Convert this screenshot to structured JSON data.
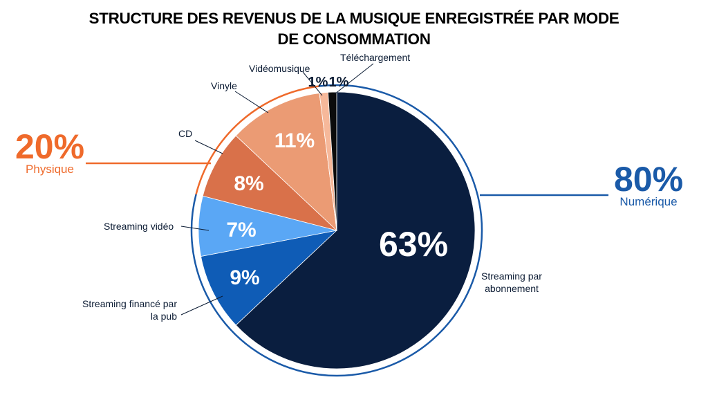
{
  "chart_data": {
    "type": "pie",
    "title": "STRUCTURE DES REVENUS DE LA MUSIQUE ENREGISTRÉE PAR MODE DE CONSOMMATION",
    "slices": [
      {
        "label": "Streaming par abonnement",
        "value": 63,
        "display": "63%",
        "color": "#0a1e3f"
      },
      {
        "label": "Streaming financé par la pub",
        "value": 9,
        "display": "9%",
        "color": "#0f5cb6"
      },
      {
        "label": "Streaming vidéo",
        "value": 7,
        "display": "7%",
        "color": "#5aa7f5"
      },
      {
        "label": "CD",
        "value": 8,
        "display": "8%",
        "color": "#d9714a"
      },
      {
        "label": "Vinyle",
        "value": 11,
        "display": "11%",
        "color": "#eb9b74"
      },
      {
        "label": "Vidéomusique",
        "value": 1,
        "display": "1%",
        "color": "#f6b89a"
      },
      {
        "label": "Téléchargement",
        "value": 1,
        "display": "1%",
        "color": "#0b0b0b"
      }
    ],
    "groups": [
      {
        "name": "Numérique",
        "value": 80,
        "display": "80%",
        "color": "#1a5aa8"
      },
      {
        "name": "Physique",
        "value": 20,
        "display": "20%",
        "color": "#ef6a2b"
      }
    ]
  }
}
